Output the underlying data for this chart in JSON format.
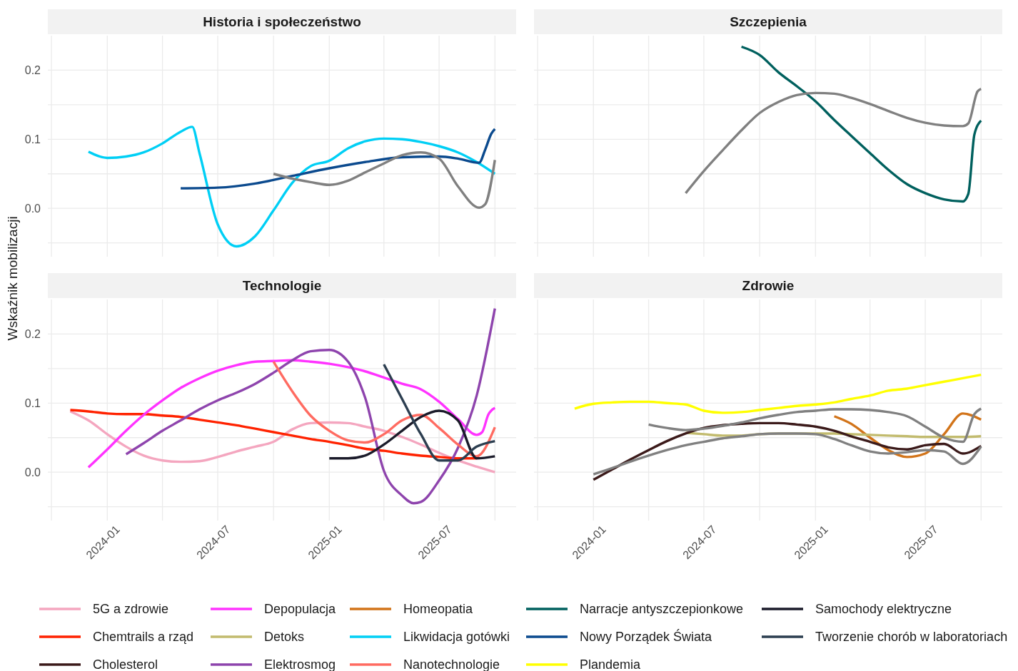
{
  "chart_data": [
    {
      "type": "line",
      "title": "Historia i społeczeństwo",
      "ylabel": "Wskaźnik mobilizacji",
      "xlim": [
        "2023-09-25",
        "2025-11-05"
      ],
      "ylim": [
        -0.07,
        0.25
      ],
      "xticks": [
        {
          "value": "2023-10-01",
          "label": null
        },
        {
          "value": "2024-01-01",
          "label": null
        },
        {
          "value": "2024-04-01",
          "label": null
        },
        {
          "value": "2024-07-01",
          "label": null
        },
        {
          "value": "2024-10-01",
          "label": null
        },
        {
          "value": "2025-01-01",
          "label": null
        },
        {
          "value": "2025-04-01",
          "label": null
        },
        {
          "value": "2025-07-01",
          "label": null
        },
        {
          "value": "2025-10-01",
          "label": null
        }
      ],
      "yticks": [
        {
          "value": -0.05,
          "label": null
        },
        {
          "value": 0,
          "label": "0.0"
        },
        {
          "value": 0.05,
          "label": null
        },
        {
          "value": 0.1,
          "label": "0.1"
        },
        {
          "value": 0.15,
          "label": null
        },
        {
          "value": 0.2,
          "label": "0.2"
        }
      ],
      "grid": true,
      "tick_labels": "y",
      "legend": "bottom",
      "line_style": "solid",
      "series": [
        {
          "name": "Likwidacja gotówki",
          "color": "#00cff5",
          "x": [
            "2023-12-01",
            "2024-01-01",
            "2024-02-01",
            "2024-03-01",
            "2024-04-01",
            "2024-05-01",
            "2024-05-20",
            "2024-06-01",
            "2024-07-01",
            "2024-08-01",
            "2024-09-01",
            "2024-10-01",
            "2024-11-01",
            "2024-12-01",
            "2025-01-01",
            "2025-02-01",
            "2025-03-01",
            "2025-04-01",
            "2025-05-01",
            "2025-06-01",
            "2025-07-01",
            "2025-08-01",
            "2025-09-01",
            "2025-10-01"
          ],
          "values": [
            0.082,
            0.073,
            0.075,
            0.081,
            0.094,
            0.111,
            0.118,
            0.08,
            -0.023,
            -0.055,
            -0.04,
            -0.003,
            0.037,
            0.061,
            0.069,
            0.087,
            0.097,
            0.101,
            0.1,
            0.096,
            0.09,
            0.081,
            0.067,
            0.05
          ]
        },
        {
          "name": "Nowy Porządek Świata",
          "color": "#0b4a8e",
          "x": [
            "2024-05-01",
            "2024-07-01",
            "2024-09-01",
            "2024-11-01",
            "2025-01-01",
            "2025-03-01",
            "2025-05-01",
            "2025-07-01",
            "2025-08-01",
            "2025-09-05",
            "2025-09-15",
            "2025-09-25",
            "2025-10-01"
          ],
          "values": [
            0.029,
            0.03,
            0.036,
            0.047,
            0.058,
            0.067,
            0.074,
            0.075,
            0.072,
            0.066,
            0.085,
            0.108,
            0.115
          ]
        },
        {
          "color": "#808080",
          "x": [
            "2024-10-01",
            "2024-11-01",
            "2024-12-01",
            "2025-01-01",
            "2025-02-01",
            "2025-03-01",
            "2025-04-01",
            "2025-05-01",
            "2025-06-01",
            "2025-07-01",
            "2025-08-01",
            "2025-09-05",
            "2025-09-15",
            "2025-10-01"
          ],
          "values": [
            0.05,
            0.043,
            0.038,
            0.034,
            0.04,
            0.052,
            0.065,
            0.077,
            0.081,
            0.072,
            0.032,
            0.001,
            0.006,
            0.07
          ]
        }
      ]
    },
    {
      "type": "line",
      "title": "Szczepienia",
      "xlim": [
        "2023-09-25",
        "2025-11-05"
      ],
      "ylim": [
        -0.07,
        0.25
      ],
      "xticks": [
        {
          "value": "2023-10-01",
          "label": null
        },
        {
          "value": "2024-01-01",
          "label": null
        },
        {
          "value": "2024-04-01",
          "label": null
        },
        {
          "value": "2024-07-01",
          "label": null
        },
        {
          "value": "2024-10-01",
          "label": null
        },
        {
          "value": "2025-01-01",
          "label": null
        },
        {
          "value": "2025-04-01",
          "label": null
        },
        {
          "value": "2025-07-01",
          "label": null
        },
        {
          "value": "2025-10-01",
          "label": null
        }
      ],
      "yticks": [
        {
          "value": -0.05,
          "label": null
        },
        {
          "value": 0,
          "label": null
        },
        {
          "value": 0.05,
          "label": null
        },
        {
          "value": 0.1,
          "label": null
        },
        {
          "value": 0.15,
          "label": null
        },
        {
          "value": 0.2,
          "label": null
        }
      ],
      "grid": true,
      "tick_labels": false,
      "legend": "bottom",
      "line_style": "solid",
      "series": [
        {
          "name": "Narracje antyszczepionkowe",
          "color": "#00605e",
          "x": [
            "2024-09-01",
            "2024-10-01",
            "2024-11-01",
            "2024-12-01",
            "2025-01-01",
            "2025-02-01",
            "2025-03-01",
            "2025-04-01",
            "2025-05-01",
            "2025-06-01",
            "2025-07-01",
            "2025-08-01",
            "2025-09-01",
            "2025-09-10",
            "2025-09-20",
            "2025-10-01"
          ],
          "values": [
            0.234,
            0.222,
            0.197,
            0.177,
            0.155,
            0.128,
            0.105,
            0.08,
            0.056,
            0.035,
            0.022,
            0.013,
            0.01,
            0.021,
            0.107,
            0.127
          ]
        },
        {
          "color": "#808080",
          "x": [
            "2024-06-01",
            "2024-07-01",
            "2024-08-01",
            "2024-09-01",
            "2024-10-01",
            "2024-11-01",
            "2024-12-01",
            "2025-01-01",
            "2025-02-01",
            "2025-03-01",
            "2025-04-01",
            "2025-05-01",
            "2025-06-01",
            "2025-07-01",
            "2025-08-01",
            "2025-09-01",
            "2025-09-10",
            "2025-09-25",
            "2025-10-01"
          ],
          "values": [
            0.022,
            0.054,
            0.084,
            0.113,
            0.138,
            0.154,
            0.164,
            0.167,
            0.166,
            0.16,
            0.151,
            0.141,
            0.131,
            0.124,
            0.12,
            0.119,
            0.123,
            0.169,
            0.173
          ]
        }
      ]
    },
    {
      "type": "line",
      "title": "Technologie",
      "xlim": [
        "2023-09-25",
        "2025-11-05"
      ],
      "ylim": [
        -0.07,
        0.25
      ],
      "xticks": [
        {
          "value": "2023-10-01",
          "label": null
        },
        {
          "value": "2024-01-01",
          "label": "2024-01"
        },
        {
          "value": "2024-04-01",
          "label": null
        },
        {
          "value": "2024-07-01",
          "label": "2024-07"
        },
        {
          "value": "2024-10-01",
          "label": null
        },
        {
          "value": "2025-01-01",
          "label": "2025-01"
        },
        {
          "value": "2025-04-01",
          "label": null
        },
        {
          "value": "2025-07-01",
          "label": "2025-07"
        },
        {
          "value": "2025-10-01",
          "label": null
        }
      ],
      "yticks": [
        {
          "value": -0.05,
          "label": null
        },
        {
          "value": 0,
          "label": "0.0"
        },
        {
          "value": 0.05,
          "label": null
        },
        {
          "value": 0.1,
          "label": "0.1"
        },
        {
          "value": 0.15,
          "label": null
        },
        {
          "value": 0.2,
          "label": "0.2"
        }
      ],
      "grid": true,
      "legend": "bottom",
      "line_style": "solid",
      "series": [
        {
          "name": "5G a zdrowie",
          "color": "#f4a6bf",
          "x": [
            "2023-11-01",
            "2023-12-01",
            "2024-01-01",
            "2024-02-01",
            "2024-03-01",
            "2024-04-01",
            "2024-05-01",
            "2024-06-01",
            "2024-07-01",
            "2024-08-01",
            "2024-09-01",
            "2024-10-01",
            "2024-11-01",
            "2024-12-01",
            "2025-01-01",
            "2025-02-01",
            "2025-03-01",
            "2025-04-01",
            "2025-05-01",
            "2025-06-01",
            "2025-07-01",
            "2025-08-01",
            "2025-09-01",
            "2025-10-01"
          ],
          "values": [
            0.088,
            0.075,
            0.055,
            0.037,
            0.024,
            0.017,
            0.015,
            0.016,
            0.022,
            0.03,
            0.037,
            0.044,
            0.062,
            0.071,
            0.072,
            0.071,
            0.066,
            0.06,
            0.051,
            0.04,
            0.028,
            0.017,
            0.008,
            0.0
          ]
        },
        {
          "name": "Chemtrails a rząd",
          "color": "#ff2200",
          "x": [
            "2023-11-01",
            "2023-12-01",
            "2024-01-01",
            "2024-02-01",
            "2024-03-01",
            "2024-04-01",
            "2024-05-01",
            "2024-06-01",
            "2024-07-01",
            "2024-08-01",
            "2024-09-01",
            "2024-10-01",
            "2024-11-01",
            "2024-12-01",
            "2025-01-01",
            "2025-02-01",
            "2025-03-01",
            "2025-04-01",
            "2025-05-01",
            "2025-06-01",
            "2025-07-01",
            "2025-08-01",
            "2025-09-01"
          ],
          "values": [
            0.09,
            0.088,
            0.085,
            0.084,
            0.084,
            0.082,
            0.08,
            0.076,
            0.072,
            0.068,
            0.063,
            0.058,
            0.053,
            0.048,
            0.044,
            0.039,
            0.034,
            0.031,
            0.027,
            0.024,
            0.022,
            0.02,
            0.02
          ]
        },
        {
          "name": "Depopulacja",
          "color": "#ff33ff",
          "x": [
            "2023-12-01",
            "2024-01-01",
            "2024-02-01",
            "2024-03-01",
            "2024-04-01",
            "2024-05-01",
            "2024-06-01",
            "2024-07-01",
            "2024-08-01",
            "2024-09-01",
            "2024-10-01",
            "2024-11-01",
            "2024-12-01",
            "2025-01-01",
            "2025-02-01",
            "2025-03-01",
            "2025-04-01",
            "2025-05-01",
            "2025-06-01",
            "2025-07-01",
            "2025-08-01",
            "2025-09-01",
            "2025-09-10",
            "2025-09-20",
            "2025-10-01"
          ],
          "values": [
            0.007,
            0.033,
            0.06,
            0.083,
            0.104,
            0.122,
            0.136,
            0.147,
            0.155,
            0.16,
            0.161,
            0.162,
            0.16,
            0.157,
            0.152,
            0.146,
            0.137,
            0.128,
            0.12,
            0.102,
            0.077,
            0.054,
            0.058,
            0.083,
            0.093
          ]
        },
        {
          "name": "Elektrosmog",
          "color": "#8e44ad",
          "x": [
            "2024-02-01",
            "2024-03-01",
            "2024-04-01",
            "2024-05-01",
            "2024-06-01",
            "2024-07-01",
            "2024-08-01",
            "2024-09-01",
            "2024-10-01",
            "2024-11-01",
            "2024-12-01",
            "2025-01-01",
            "2025-02-01",
            "2025-03-01",
            "2025-04-01",
            "2025-05-01",
            "2025-05-20",
            "2025-06-01",
            "2025-07-01",
            "2025-08-01",
            "2025-09-01",
            "2025-10-01"
          ],
          "values": [
            0.026,
            0.042,
            0.06,
            0.075,
            0.091,
            0.104,
            0.115,
            0.128,
            0.144,
            0.162,
            0.175,
            0.177,
            0.16,
            0.108,
            0.002,
            -0.034,
            -0.045,
            -0.043,
            -0.012,
            0.035,
            0.111,
            0.237
          ]
        },
        {
          "name": "Nanotechnologie",
          "color": "#ff6b61",
          "x": [
            "2024-10-01",
            "2024-11-01",
            "2024-12-01",
            "2025-01-01",
            "2025-02-01",
            "2025-03-01",
            "2025-04-01",
            "2025-05-01",
            "2025-06-01",
            "2025-07-01",
            "2025-08-01",
            "2025-09-01",
            "2025-10-01"
          ],
          "values": [
            0.16,
            0.117,
            0.082,
            0.06,
            0.046,
            0.043,
            0.055,
            0.075,
            0.083,
            0.064,
            0.04,
            0.023,
            0.065
          ]
        },
        {
          "name": "Samochody elektryczne",
          "color": "#1b1b2a",
          "x": [
            "2025-01-01",
            "2025-02-01",
            "2025-03-01",
            "2025-04-01",
            "2025-05-01",
            "2025-06-01",
            "2025-07-01",
            "2025-08-01",
            "2025-09-01",
            "2025-10-01"
          ],
          "values": [
            0.02,
            0.02,
            0.024,
            0.04,
            0.06,
            0.08,
            0.089,
            0.075,
            0.02,
            0.023
          ]
        },
        {
          "name": "Tworzenie chorób w laboratoriach",
          "color": "#2c3e50",
          "x": [
            "2025-04-01",
            "2025-05-01",
            "2025-06-01",
            "2025-07-01",
            "2025-08-01",
            "2025-09-01",
            "2025-10-01"
          ],
          "values": [
            0.156,
            0.106,
            0.055,
            0.017,
            0.017,
            0.037,
            0.045
          ]
        }
      ]
    },
    {
      "type": "line",
      "title": "Zdrowie",
      "xlim": [
        "2023-09-25",
        "2025-11-05"
      ],
      "ylim": [
        -0.07,
        0.25
      ],
      "xticks": [
        {
          "value": "2023-10-01",
          "label": null
        },
        {
          "value": "2024-01-01",
          "label": "2024-01"
        },
        {
          "value": "2024-04-01",
          "label": null
        },
        {
          "value": "2024-07-01",
          "label": "2024-07"
        },
        {
          "value": "2024-10-01",
          "label": null
        },
        {
          "value": "2025-01-01",
          "label": "2025-01"
        },
        {
          "value": "2025-04-01",
          "label": null
        },
        {
          "value": "2025-07-01",
          "label": "2025-07"
        },
        {
          "value": "2025-10-01",
          "label": null
        }
      ],
      "yticks": [
        {
          "value": -0.05,
          "label": null
        },
        {
          "value": 0,
          "label": null
        },
        {
          "value": 0.05,
          "label": null
        },
        {
          "value": 0.1,
          "label": null
        },
        {
          "value": 0.15,
          "label": null
        },
        {
          "value": 0.2,
          "label": null
        }
      ],
      "grid": true,
      "tick_labels": "x",
      "legend": "bottom",
      "line_style": "solid",
      "series": [
        {
          "name": "Plandemia",
          "color": "#ffff00",
          "x": [
            "2023-12-01",
            "2024-01-01",
            "2024-02-01",
            "2024-03-01",
            "2024-04-01",
            "2024-05-01",
            "2024-06-01",
            "2024-07-01",
            "2024-08-01",
            "2024-09-01",
            "2024-10-01",
            "2024-11-01",
            "2024-12-01",
            "2025-01-01",
            "2025-02-01",
            "2025-03-01",
            "2025-04-01",
            "2025-05-01",
            "2025-06-01",
            "2025-07-01",
            "2025-08-01",
            "2025-09-01",
            "2025-10-01"
          ],
          "values": [
            0.092,
            0.099,
            0.101,
            0.102,
            0.102,
            0.1,
            0.098,
            0.089,
            0.086,
            0.087,
            0.09,
            0.093,
            0.096,
            0.098,
            0.101,
            0.106,
            0.111,
            0.118,
            0.121,
            0.126,
            0.131,
            0.136,
            0.141
          ]
        },
        {
          "name": "Homeopatia",
          "color": "#d2741a",
          "x": [
            "2025-02-01",
            "2025-03-01",
            "2025-04-01",
            "2025-05-01",
            "2025-06-01",
            "2025-07-01",
            "2025-08-01",
            "2025-09-01",
            "2025-10-01"
          ],
          "values": [
            0.081,
            0.07,
            0.05,
            0.032,
            0.022,
            0.027,
            0.055,
            0.085,
            0.076
          ]
        },
        {
          "name": "Detoks",
          "color": "#c2bb6e",
          "x": [
            "2024-06-01",
            "2024-07-01",
            "2024-08-01",
            "2024-09-01",
            "2024-10-01",
            "2024-11-01",
            "2024-12-01",
            "2025-01-01",
            "2025-02-01",
            "2025-03-01",
            "2025-04-01",
            "2025-05-01",
            "2025-06-01",
            "2025-07-01",
            "2025-08-01",
            "2025-09-01",
            "2025-10-01"
          ],
          "values": [
            0.057,
            0.055,
            0.053,
            0.053,
            0.055,
            0.056,
            0.056,
            0.056,
            0.056,
            0.055,
            0.054,
            0.053,
            0.052,
            0.051,
            0.051,
            0.051,
            0.052
          ]
        },
        {
          "name": "Cholesterol",
          "color": "#3b1a1a",
          "x": [
            "2024-01-01",
            "2024-02-01",
            "2024-03-01",
            "2024-04-01",
            "2024-05-01",
            "2024-06-01",
            "2024-07-01",
            "2024-08-01",
            "2024-09-01",
            "2024-10-01",
            "2024-11-01",
            "2024-12-01",
            "2025-01-01",
            "2025-02-01",
            "2025-03-01",
            "2025-04-01",
            "2025-05-01",
            "2025-06-01",
            "2025-07-01",
            "2025-08-01",
            "2025-09-01",
            "2025-10-01"
          ],
          "values": [
            -0.011,
            0.004,
            0.018,
            0.032,
            0.045,
            0.056,
            0.064,
            0.068,
            0.07,
            0.071,
            0.071,
            0.069,
            0.066,
            0.06,
            0.052,
            0.044,
            0.036,
            0.033,
            0.039,
            0.041,
            0.027,
            0.038
          ]
        },
        {
          "color": "#808080",
          "x": [
            "2024-04-01",
            "2024-05-01",
            "2024-06-01",
            "2024-07-01",
            "2024-08-01",
            "2024-09-01",
            "2024-10-01",
            "2024-11-01",
            "2024-12-01",
            "2025-01-01",
            "2025-02-01",
            "2025-03-01",
            "2025-04-01",
            "2025-05-01",
            "2025-06-01",
            "2025-07-01",
            "2025-08-01",
            "2025-09-01",
            "2025-09-20",
            "2025-10-01"
          ],
          "values": [
            0.069,
            0.064,
            0.061,
            0.063,
            0.067,
            0.072,
            0.078,
            0.083,
            0.087,
            0.089,
            0.091,
            0.091,
            0.09,
            0.087,
            0.081,
            0.066,
            0.05,
            0.044,
            0.084,
            0.092
          ]
        },
        {
          "color": "#808080",
          "x": [
            "2024-01-01",
            "2024-02-01",
            "2024-03-01",
            "2024-04-01",
            "2024-05-01",
            "2024-06-01",
            "2024-07-01",
            "2024-08-01",
            "2024-09-01",
            "2024-10-01",
            "2024-11-01",
            "2024-12-01",
            "2025-01-01",
            "2025-02-01",
            "2025-03-01",
            "2025-04-01",
            "2025-05-01",
            "2025-06-01",
            "2025-07-01",
            "2025-08-01",
            "2025-09-01",
            "2025-10-01"
          ],
          "values": [
            -0.003,
            0.006,
            0.015,
            0.024,
            0.032,
            0.039,
            0.044,
            0.049,
            0.052,
            0.055,
            0.056,
            0.056,
            0.055,
            0.048,
            0.039,
            0.03,
            0.027,
            0.029,
            0.032,
            0.03,
            0.012,
            0.037
          ]
        }
      ]
    }
  ]
}
